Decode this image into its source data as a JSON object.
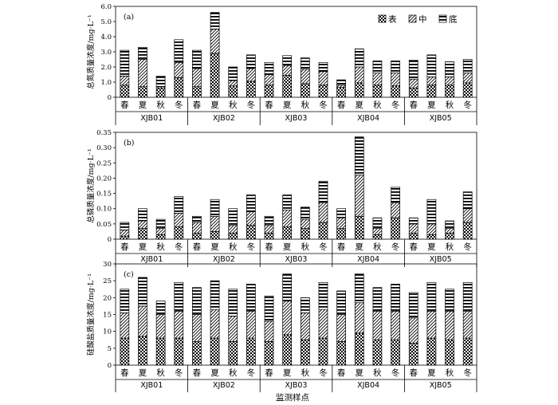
{
  "series_names": [
    "表",
    "中",
    "底"
  ],
  "season_labels": [
    "春",
    "夏",
    "秋",
    "冬"
  ],
  "groups": [
    "XJB01",
    "XJB02",
    "XJB03",
    "XJB04",
    "XJB05"
  ],
  "xlabel": "监测样点",
  "chart_data": [
    {
      "type": "bar",
      "stacked": true,
      "panel": "(a)",
      "ylabel": "总氮质量浓度/mg·L⁻¹",
      "ylim": [
        0,
        6.0
      ],
      "yticks": [
        "0",
        "1.0",
        "2.0",
        "3.0",
        "4.0",
        "5.0",
        "6.0"
      ],
      "legend": "top-right",
      "categories": [
        "XJB01-春",
        "XJB01-夏",
        "XJB01-秋",
        "XJB01-冬",
        "XJB02-春",
        "XJB02-夏",
        "XJB02-秋",
        "XJB02-冬",
        "XJB03-春",
        "XJB03-夏",
        "XJB03-秋",
        "XJB03-冬",
        "XJB04-春",
        "XJB04-夏",
        "XJB04-秋",
        "XJB04-冬",
        "XJB05-春",
        "XJB05-夏",
        "XJB05-秋",
        "XJB05-冬"
      ],
      "series": [
        {
          "name": "表",
          "values": [
            0.8,
            0.7,
            0.6,
            1.3,
            0.7,
            2.9,
            0.75,
            1.05,
            0.8,
            1.45,
            0.9,
            0.8,
            0.65,
            0.95,
            0.8,
            0.75,
            0.6,
            0.8,
            0.8,
            0.95
          ]
        },
        {
          "name": "中",
          "values": [
            0.6,
            1.8,
            0.1,
            1.0,
            1.2,
            1.6,
            0.35,
            0.85,
            0.7,
            0.65,
            0.95,
            0.9,
            0.15,
            1.05,
            0.8,
            0.85,
            0.6,
            0.55,
            0.55,
            0.65
          ]
        },
        {
          "name": "底",
          "values": [
            1.7,
            0.8,
            0.7,
            1.5,
            1.2,
            1.1,
            0.9,
            0.9,
            0.8,
            0.65,
            0.75,
            0.6,
            0.35,
            1.2,
            0.8,
            0.8,
            1.25,
            1.45,
            1.0,
            0.9
          ]
        }
      ]
    },
    {
      "type": "bar",
      "stacked": true,
      "panel": "(b)",
      "ylabel": "总磷质量浓度/mg·L⁻¹",
      "ylim": [
        0,
        0.35
      ],
      "yticks": [
        "0",
        "0.05",
        "0.10",
        "0.15",
        "0.20",
        "0.25",
        "0.30",
        "0.35"
      ],
      "categories": [
        "XJB01-春",
        "XJB01-夏",
        "XJB01-秋",
        "XJB01-冬",
        "XJB02-春",
        "XJB02-夏",
        "XJB02-秋",
        "XJB02-冬",
        "XJB03-春",
        "XJB03-夏",
        "XJB03-秋",
        "XJB03-冬",
        "XJB04-春",
        "XJB04-夏",
        "XJB04-秋",
        "XJB04-冬",
        "XJB05-春",
        "XJB05-夏",
        "XJB05-秋",
        "XJB05-冬"
      ],
      "series": [
        {
          "name": "表",
          "values": [
            0.01,
            0.035,
            0.015,
            0.04,
            0.02,
            0.025,
            0.02,
            0.045,
            0.02,
            0.04,
            0.035,
            0.055,
            0.035,
            0.075,
            0.015,
            0.07,
            0.02,
            0.015,
            0.02,
            0.055
          ]
        },
        {
          "name": "中",
          "values": [
            0.02,
            0.025,
            0.02,
            0.045,
            0.035,
            0.05,
            0.025,
            0.045,
            0.025,
            0.055,
            0.03,
            0.065,
            0.035,
            0.135,
            0.02,
            0.05,
            0.03,
            0.035,
            0.015,
            0.045
          ]
        },
        {
          "name": "底",
          "values": [
            0.025,
            0.04,
            0.03,
            0.055,
            0.02,
            0.055,
            0.055,
            0.055,
            0.03,
            0.05,
            0.04,
            0.07,
            0.03,
            0.125,
            0.035,
            0.05,
            0.02,
            0.08,
            0.025,
            0.055
          ]
        }
      ]
    },
    {
      "type": "bar",
      "stacked": true,
      "panel": "(c)",
      "ylabel": "硅酸盐质量浓度/mg·L⁻¹",
      "ylim": [
        0,
        30
      ],
      "yticks": [
        "0",
        "5",
        "10",
        "15",
        "20",
        "25",
        "30"
      ],
      "categories": [
        "XJB01-春",
        "XJB01-夏",
        "XJB01-秋",
        "XJB01-冬",
        "XJB02-春",
        "XJB02-夏",
        "XJB02-秋",
        "XJB02-冬",
        "XJB03-春",
        "XJB03-夏",
        "XJB03-秋",
        "XJB03-冬",
        "XJB04-春",
        "XJB04-夏",
        "XJB04-秋",
        "XJB04-冬",
        "XJB05-春",
        "XJB05-夏",
        "XJB05-秋",
        "XJB05-冬"
      ],
      "series": [
        {
          "name": "表",
          "values": [
            8,
            8.5,
            8,
            8,
            7,
            8,
            7,
            8,
            7,
            9,
            7.5,
            8,
            7,
            9.5,
            7.5,
            7.5,
            6.5,
            8,
            7.5,
            8
          ]
        },
        {
          "name": "中",
          "values": [
            7.5,
            9,
            7,
            8,
            8,
            8.5,
            7.5,
            8,
            6,
            10,
            8,
            8.5,
            8,
            9,
            8.5,
            8.5,
            7.5,
            8,
            8.5,
            8
          ]
        },
        {
          "name": "底",
          "values": [
            7,
            8.5,
            4,
            8.5,
            8,
            8.5,
            8,
            8,
            7.5,
            8,
            4.5,
            8,
            7,
            8.5,
            7,
            8,
            7.5,
            8.5,
            6.5,
            8.5
          ]
        }
      ]
    }
  ]
}
